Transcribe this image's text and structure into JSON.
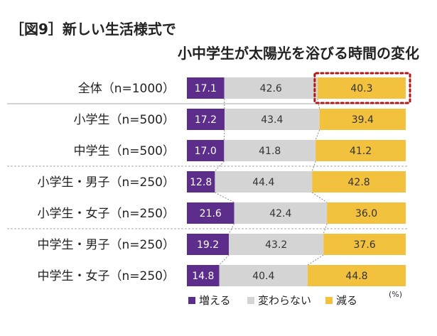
{
  "title_line1": "［図9］新しい生活様式で",
  "title_line2": "小中学生が太陽光を浴びる時間の変化",
  "unit": "(%)",
  "colors": {
    "increase": "#5c2d8a",
    "same": "#d4d4d4",
    "decrease": "#f2c13d",
    "highlight": "#b01818"
  },
  "chart_data": {
    "type": "bar",
    "stacked": true,
    "orientation": "horizontal",
    "percent_stacked": true,
    "categories": [
      "全体（n=1000）",
      "小学生（n=500）",
      "中学生（n=500）",
      "小学生・男子（n=250）",
      "小学生・女子（n=250）",
      "中学生・男子（n=250）",
      "中学生・女子（n=250）"
    ],
    "series": [
      {
        "name": "増える",
        "values": [
          17.1,
          17.2,
          17.0,
          12.8,
          21.6,
          19.2,
          14.8
        ]
      },
      {
        "name": "変わらない",
        "values": [
          42.6,
          43.4,
          41.8,
          44.4,
          42.4,
          43.2,
          40.4
        ]
      },
      {
        "name": "減る",
        "values": [
          40.3,
          39.4,
          41.2,
          42.8,
          36.0,
          37.6,
          44.8
        ]
      }
    ],
    "labels": [
      [
        "17.1",
        "42.6",
        "40.3"
      ],
      [
        "17.2",
        "43.4",
        "39.4"
      ],
      [
        "17.0",
        "41.8",
        "41.2"
      ],
      [
        "12.8",
        "44.4",
        "42.8"
      ],
      [
        "21.6",
        "42.4",
        "36.0"
      ],
      [
        "19.2",
        "43.2",
        "37.6"
      ],
      [
        "14.8",
        "40.4",
        "44.8"
      ]
    ],
    "highlighted": {
      "category": "全体（n=1000）",
      "series": "減る"
    },
    "legend_position": "bottom-left",
    "xlim": [
      0,
      100
    ],
    "grid": false
  }
}
